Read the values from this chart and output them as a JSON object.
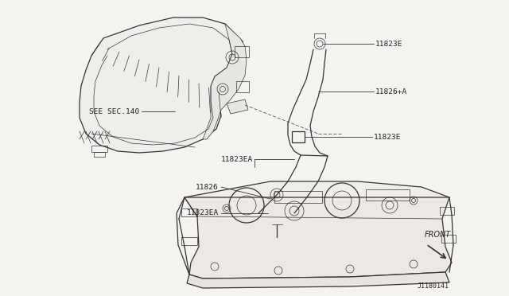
{
  "bg_color": "#f5f3f0",
  "line_color": "#333333",
  "text_color": "#222222",
  "labels": {
    "see_sec": "SEE SEC.140",
    "11823E_top": "11823E",
    "11826A": "11826+A",
    "11823E_mid": "11823E",
    "11823EA_mid": "11823EA",
    "11826": "11826",
    "11823EA_bot": "11823EA",
    "front": "FRONT",
    "part_num": "J1180141"
  }
}
